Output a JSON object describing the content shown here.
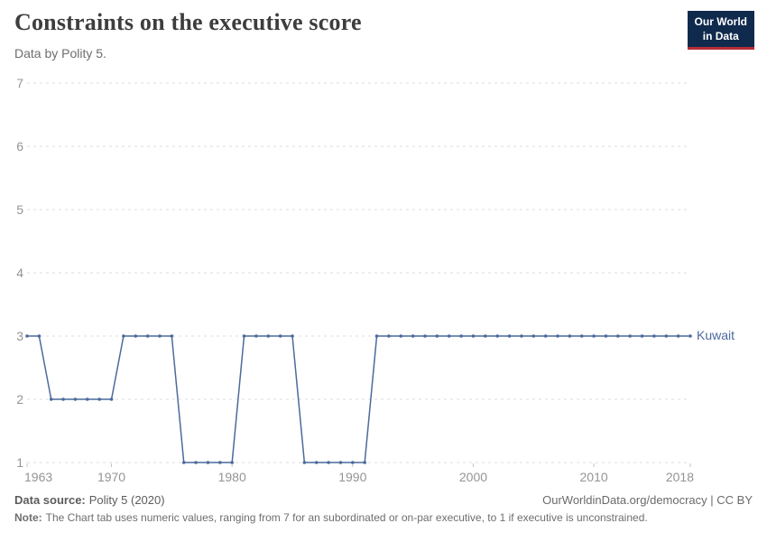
{
  "header": {
    "title": "Constraints on the executive score",
    "subtitle": "Data by Polity 5.",
    "logo": {
      "line1": "Our World",
      "line2": "in Data",
      "bg_color": "#102a4d",
      "bar_color": "#b92d37"
    }
  },
  "chart_data": {
    "type": "line",
    "title": "Constraints on the executive score",
    "subtitle": "Data by Polity 5.",
    "x_range": [
      1963,
      2018
    ],
    "ylim": [
      1,
      7
    ],
    "yticks": [
      1,
      2,
      3,
      4,
      5,
      6,
      7
    ],
    "xticks": [
      1963,
      1970,
      1980,
      1990,
      2000,
      2010,
      2018
    ],
    "grid": "dashed-horizontal",
    "legend_position": "end-of-line",
    "series": [
      {
        "name": "Kuwait",
        "color": "#4c6a9c",
        "x": [
          1963,
          1964,
          1965,
          1966,
          1967,
          1968,
          1969,
          1970,
          1971,
          1972,
          1973,
          1974,
          1975,
          1976,
          1977,
          1978,
          1979,
          1980,
          1981,
          1982,
          1983,
          1984,
          1985,
          1986,
          1987,
          1988,
          1989,
          1990,
          1991,
          1992,
          1993,
          1994,
          1995,
          1996,
          1997,
          1998,
          1999,
          2000,
          2001,
          2002,
          2003,
          2004,
          2005,
          2006,
          2007,
          2008,
          2009,
          2010,
          2011,
          2012,
          2013,
          2014,
          2015,
          2016,
          2017,
          2018
        ],
        "y": [
          3,
          3,
          2,
          2,
          2,
          2,
          2,
          2,
          3,
          3,
          3,
          3,
          3,
          1,
          1,
          1,
          1,
          1,
          3,
          3,
          3,
          3,
          3,
          1,
          1,
          1,
          1,
          1,
          1,
          3,
          3,
          3,
          3,
          3,
          3,
          3,
          3,
          3,
          3,
          3,
          3,
          3,
          3,
          3,
          3,
          3,
          3,
          3,
          3,
          3,
          3,
          3,
          3,
          3,
          3,
          3
        ]
      }
    ]
  },
  "footer": {
    "data_source_label": "Data source:",
    "data_source_value": "Polity 5 (2020)",
    "link": "OurWorldinData.org/democracy | CC BY",
    "note_label": "Note:",
    "note_text": "The Chart tab uses numeric values, ranging from 7 for an subordinated or on-par executive, to 1 if executive is unconstrained."
  }
}
